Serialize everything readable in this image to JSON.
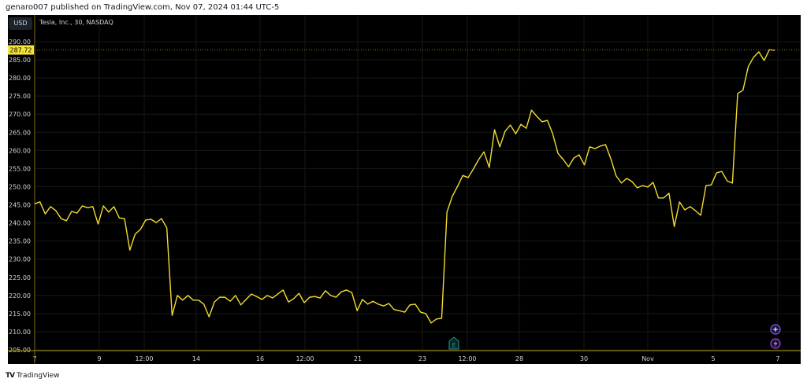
{
  "header": {
    "published": "genaro007 published on TradingView.com, Nov 07, 2024 01:44 UTC-5"
  },
  "toolbar": {
    "currency": "USD"
  },
  "legend": {
    "symbol": "Tesla, Inc., 30, NASDAQ"
  },
  "footer": {
    "brand": "TradingView",
    "logo_icon": "tradingview-logo"
  },
  "markers": {
    "earnings_label": "E",
    "icons": [
      "plus-circle-icon",
      "lightning-icon"
    ]
  },
  "colors": {
    "line": "#f2dd2f",
    "background": "#000000",
    "earnings": "#1c9a8c",
    "event": "#8e5cf0"
  },
  "chart_data": {
    "type": "line",
    "title": "",
    "xlabel": "",
    "ylabel": "",
    "ylim": [
      205,
      290
    ],
    "grid": true,
    "y_axis_position": "left",
    "yticks": [
      "205.00",
      "210.00",
      "215.00",
      "220.00",
      "225.00",
      "230.00",
      "235.00",
      "240.00",
      "245.00",
      "250.00",
      "255.00",
      "260.00",
      "265.00",
      "270.00",
      "275.00",
      "280.00",
      "285.00",
      "290.00"
    ],
    "xticks": [
      "7",
      "9",
      "12:00",
      "14",
      "16",
      "12:00",
      "21",
      "23",
      "12:00",
      "28",
      "30",
      "Nov",
      "5",
      "7"
    ],
    "last_price": "287.72",
    "series": [
      {
        "values": [
          245.3,
          245.8,
          242.5,
          244.5,
          243.4,
          241.2,
          240.6,
          243.2,
          242.7,
          244.7,
          244.2,
          244.5,
          239.7,
          244.7,
          243.0,
          244.5,
          241.4,
          241.2,
          232.5,
          236.9,
          238.2,
          240.8,
          241.0,
          240.1,
          241.2,
          238.6,
          214.5,
          220.0,
          218.7,
          220.0,
          218.7,
          218.7,
          217.6,
          214.1,
          218.2,
          219.5,
          219.5,
          218.4,
          220.0,
          217.4,
          218.9,
          220.4,
          219.7,
          218.9,
          220.0,
          219.3,
          220.4,
          221.5,
          218.2,
          219.1,
          220.6,
          218.0,
          219.5,
          219.7,
          219.3,
          221.3,
          220.0,
          219.5,
          221.0,
          221.5,
          220.8,
          215.8,
          218.9,
          217.6,
          218.4,
          217.6,
          217.1,
          217.8,
          216.1,
          215.8,
          215.4,
          217.4,
          217.6,
          215.4,
          215.0,
          212.4,
          213.5,
          213.7,
          243.0,
          247.3,
          250.1,
          253.1,
          252.5,
          254.9,
          257.5,
          259.6,
          255.3,
          265.7,
          261.0,
          265.3,
          267.0,
          264.6,
          267.2,
          266.1,
          271.1,
          269.4,
          267.9,
          268.3,
          264.6,
          259.2,
          257.5,
          255.5,
          257.9,
          258.8,
          256.0,
          261.0,
          260.5,
          261.2,
          261.6,
          257.7,
          253.0,
          251.0,
          252.3,
          251.4,
          249.7,
          250.3,
          249.9,
          251.2,
          246.9,
          246.9,
          248.2,
          239.0,
          245.8,
          243.6,
          244.5,
          243.4,
          242.1,
          250.3,
          250.5,
          253.8,
          254.2,
          251.6,
          251.0,
          275.7,
          276.6,
          283.1,
          285.7,
          287.2,
          284.8,
          287.8,
          287.6
        ]
      }
    ]
  }
}
